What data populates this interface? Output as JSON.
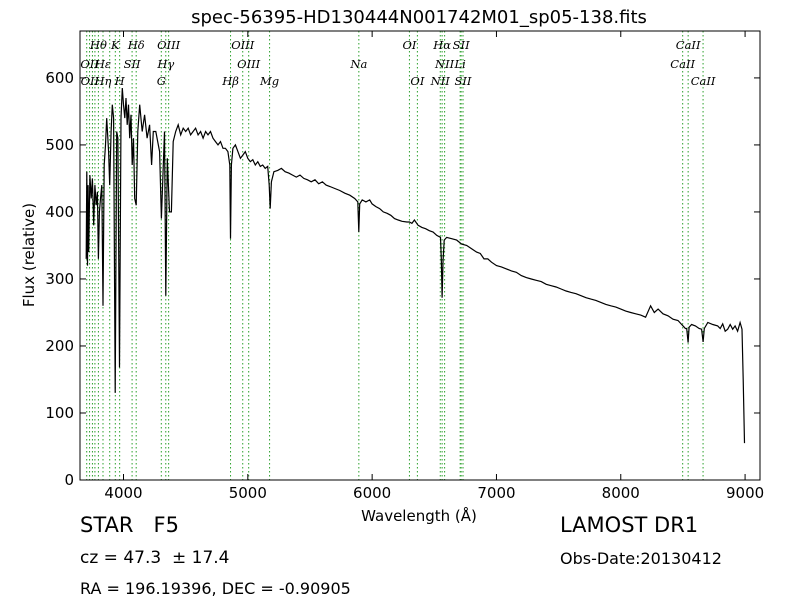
{
  "chart_data": {
    "type": "line",
    "title": "spec-56395-HD130444N001742M01_sp05-138.fits",
    "xlabel": "Wavelength (Å)",
    "ylabel": "Flux (relative)",
    "xlim": [
      3650,
      9120
    ],
    "ylim": [
      0,
      670
    ],
    "xticks": [
      4000,
      5000,
      6000,
      7000,
      8000,
      9000
    ],
    "yticks": [
      0,
      100,
      200,
      300,
      400,
      500,
      600
    ],
    "grid": false,
    "colors": {
      "spectrum": "#000000",
      "line_markers": "#2ca02c"
    },
    "spectrum": [
      [
        3700,
        330
      ],
      [
        3705,
        460
      ],
      [
        3710,
        320
      ],
      [
        3715,
        440
      ],
      [
        3720,
        340
      ],
      [
        3730,
        455
      ],
      [
        3740,
        420
      ],
      [
        3750,
        450
      ],
      [
        3760,
        380
      ],
      [
        3770,
        440
      ],
      [
        3780,
        410
      ],
      [
        3790,
        430
      ],
      [
        3798,
        330
      ],
      [
        3806,
        400
      ],
      [
        3815,
        420
      ],
      [
        3825,
        440
      ],
      [
        3835,
        260
      ],
      [
        3845,
        470
      ],
      [
        3855,
        500
      ],
      [
        3865,
        540
      ],
      [
        3880,
        490
      ],
      [
        3889,
        440
      ],
      [
        3900,
        520
      ],
      [
        3910,
        560
      ],
      [
        3920,
        540
      ],
      [
        3933,
        130
      ],
      [
        3945,
        520
      ],
      [
        3955,
        510
      ],
      [
        3968,
        168
      ],
      [
        3980,
        540
      ],
      [
        3990,
        585
      ],
      [
        4000,
        560
      ],
      [
        4010,
        540
      ],
      [
        4020,
        570
      ],
      [
        4030,
        530
      ],
      [
        4040,
        560
      ],
      [
        4050,
        510
      ],
      [
        4060,
        545
      ],
      [
        4070,
        470
      ],
      [
        4080,
        510
      ],
      [
        4090,
        420
      ],
      [
        4102,
        410
      ],
      [
        4115,
        520
      ],
      [
        4130,
        560
      ],
      [
        4150,
        520
      ],
      [
        4170,
        545
      ],
      [
        4190,
        510
      ],
      [
        4210,
        530
      ],
      [
        4226,
        470
      ],
      [
        4240,
        520
      ],
      [
        4260,
        520
      ],
      [
        4275,
        505
      ],
      [
        4290,
        490
      ],
      [
        4305,
        390
      ],
      [
        4320,
        470
      ],
      [
        4330,
        520
      ],
      [
        4340,
        275
      ],
      [
        4352,
        480
      ],
      [
        4370,
        400
      ],
      [
        4385,
        400
      ],
      [
        4400,
        505
      ],
      [
        4420,
        520
      ],
      [
        4440,
        530
      ],
      [
        4460,
        515
      ],
      [
        4480,
        525
      ],
      [
        4500,
        520
      ],
      [
        4520,
        525
      ],
      [
        4540,
        515
      ],
      [
        4560,
        520
      ],
      [
        4580,
        525
      ],
      [
        4600,
        515
      ],
      [
        4620,
        520
      ],
      [
        4640,
        510
      ],
      [
        4660,
        520
      ],
      [
        4680,
        515
      ],
      [
        4700,
        520
      ],
      [
        4720,
        510
      ],
      [
        4740,
        505
      ],
      [
        4760,
        500
      ],
      [
        4780,
        505
      ],
      [
        4800,
        495
      ],
      [
        4820,
        495
      ],
      [
        4840,
        490
      ],
      [
        4855,
        470
      ],
      [
        4861,
        360
      ],
      [
        4868,
        470
      ],
      [
        4880,
        495
      ],
      [
        4900,
        500
      ],
      [
        4920,
        490
      ],
      [
        4940,
        480
      ],
      [
        4960,
        485
      ],
      [
        4980,
        490
      ],
      [
        5000,
        480
      ],
      [
        5020,
        475
      ],
      [
        5040,
        478
      ],
      [
        5060,
        470
      ],
      [
        5080,
        475
      ],
      [
        5100,
        468
      ],
      [
        5120,
        470
      ],
      [
        5140,
        465
      ],
      [
        5160,
        468
      ],
      [
        5172,
        440
      ],
      [
        5180,
        405
      ],
      [
        5190,
        445
      ],
      [
        5210,
        460
      ],
      [
        5240,
        462
      ],
      [
        5270,
        465
      ],
      [
        5300,
        460
      ],
      [
        5330,
        458
      ],
      [
        5360,
        455
      ],
      [
        5390,
        452
      ],
      [
        5420,
        455
      ],
      [
        5450,
        450
      ],
      [
        5480,
        448
      ],
      [
        5510,
        445
      ],
      [
        5540,
        448
      ],
      [
        5570,
        442
      ],
      [
        5600,
        445
      ],
      [
        5630,
        440
      ],
      [
        5660,
        438
      ],
      [
        5700,
        435
      ],
      [
        5740,
        432
      ],
      [
        5780,
        428
      ],
      [
        5820,
        425
      ],
      [
        5860,
        420
      ],
      [
        5885,
        415
      ],
      [
        5893,
        370
      ],
      [
        5900,
        412
      ],
      [
        5920,
        418
      ],
      [
        5950,
        415
      ],
      [
        5980,
        418
      ],
      [
        6000,
        412
      ],
      [
        6030,
        408
      ],
      [
        6060,
        405
      ],
      [
        6090,
        400
      ],
      [
        6120,
        398
      ],
      [
        6150,
        395
      ],
      [
        6180,
        390
      ],
      [
        6210,
        388
      ],
      [
        6240,
        386
      ],
      [
        6280,
        385
      ],
      [
        6300,
        385
      ],
      [
        6320,
        383
      ],
      [
        6340,
        388
      ],
      [
        6370,
        380
      ],
      [
        6400,
        377
      ],
      [
        6430,
        375
      ],
      [
        6460,
        372
      ],
      [
        6490,
        370
      ],
      [
        6520,
        365
      ],
      [
        6550,
        362
      ],
      [
        6556,
        330
      ],
      [
        6563,
        272
      ],
      [
        6570,
        325
      ],
      [
        6580,
        358
      ],
      [
        6600,
        362
      ],
      [
        6640,
        360
      ],
      [
        6680,
        358
      ],
      [
        6720,
        352
      ],
      [
        6760,
        350
      ],
      [
        6800,
        345
      ],
      [
        6840,
        340
      ],
      [
        6870,
        338
      ],
      [
        6900,
        330
      ],
      [
        6930,
        330
      ],
      [
        6960,
        325
      ],
      [
        7000,
        320
      ],
      [
        7040,
        318
      ],
      [
        7080,
        315
      ],
      [
        7120,
        312
      ],
      [
        7160,
        310
      ],
      [
        7200,
        305
      ],
      [
        7240,
        302
      ],
      [
        7280,
        300
      ],
      [
        7320,
        298
      ],
      [
        7360,
        296
      ],
      [
        7400,
        292
      ],
      [
        7440,
        290
      ],
      [
        7480,
        288
      ],
      [
        7520,
        285
      ],
      [
        7560,
        282
      ],
      [
        7600,
        280
      ],
      [
        7640,
        278
      ],
      [
        7680,
        275
      ],
      [
        7720,
        272
      ],
      [
        7760,
        270
      ],
      [
        7800,
        268
      ],
      [
        7840,
        265
      ],
      [
        7880,
        262
      ],
      [
        7920,
        260
      ],
      [
        7960,
        258
      ],
      [
        8000,
        255
      ],
      [
        8040,
        252
      ],
      [
        8080,
        250
      ],
      [
        8120,
        248
      ],
      [
        8160,
        246
      ],
      [
        8200,
        243
      ],
      [
        8240,
        260
      ],
      [
        8270,
        250
      ],
      [
        8300,
        255
      ],
      [
        8340,
        248
      ],
      [
        8380,
        245
      ],
      [
        8420,
        240
      ],
      [
        8460,
        238
      ],
      [
        8490,
        232
      ],
      [
        8510,
        228
      ],
      [
        8520,
        226
      ],
      [
        8530,
        226
      ],
      [
        8542,
        205
      ],
      [
        8550,
        228
      ],
      [
        8570,
        232
      ],
      [
        8600,
        230
      ],
      [
        8630,
        226
      ],
      [
        8650,
        225
      ],
      [
        8662,
        206
      ],
      [
        8672,
        226
      ],
      [
        8700,
        235
      ],
      [
        8740,
        232
      ],
      [
        8780,
        230
      ],
      [
        8800,
        226
      ],
      [
        8820,
        233
      ],
      [
        8840,
        222
      ],
      [
        8860,
        225
      ],
      [
        8880,
        232
      ],
      [
        8900,
        225
      ],
      [
        8920,
        230
      ],
      [
        8940,
        222
      ],
      [
        8960,
        235
      ],
      [
        8975,
        225
      ],
      [
        8985,
        150
      ],
      [
        8995,
        55
      ]
    ],
    "line_labels": [
      {
        "name": "Hθ",
        "wavelength": 3798,
        "row": 1
      },
      {
        "name": "K",
        "wavelength": 3934,
        "row": 1
      },
      {
        "name": "Hδ",
        "wavelength": 4102,
        "row": 1
      },
      {
        "name": "OIII",
        "wavelength": 4363,
        "row": 1
      },
      {
        "name": "OIII",
        "wavelength": 4959,
        "row": 1
      },
      {
        "name": "OI",
        "wavelength": 6300,
        "row": 1
      },
      {
        "name": "Hα",
        "wavelength": 6563,
        "row": 1
      },
      {
        "name": "SII",
        "wavelength": 6716,
        "row": 1
      },
      {
        "name": "CaII",
        "wavelength": 8542,
        "row": 1
      },
      {
        "name": "OII",
        "wavelength": 3727,
        "row": 2
      },
      {
        "name": "Hε",
        "wavelength": 3835,
        "row": 2
      },
      {
        "name": "SII",
        "wavelength": 4069,
        "row": 2
      },
      {
        "name": "Hγ",
        "wavelength": 4340,
        "row": 2
      },
      {
        "name": "OIII",
        "wavelength": 5007,
        "row": 2
      },
      {
        "name": "NII",
        "wavelength": 6583,
        "row": 2
      },
      {
        "name": "Li",
        "wavelength": 6708,
        "row": 2
      },
      {
        "name": "CaII",
        "wavelength": 8498,
        "row": 2
      },
      {
        "name": "OII",
        "wavelength": 3729,
        "row": 3
      },
      {
        "name": "Hη",
        "wavelength": 3835,
        "row": 3
      },
      {
        "name": "H",
        "wavelength": 3969,
        "row": 3
      },
      {
        "name": "G",
        "wavelength": 4304,
        "row": 3
      },
      {
        "name": "Hβ",
        "wavelength": 4861,
        "row": 3
      },
      {
        "name": "Mg",
        "wavelength": 5175,
        "row": 3
      },
      {
        "name": "Na",
        "wavelength": 5893,
        "row": 2
      },
      {
        "name": "OI",
        "wavelength": 6364,
        "row": 3
      },
      {
        "name": "NII",
        "wavelength": 6548,
        "row": 3
      },
      {
        "name": "SII",
        "wavelength": 6731,
        "row": 3
      },
      {
        "name": "CaII",
        "wavelength": 8662,
        "row": 3
      }
    ],
    "marker_wavelengths": [
      3704,
      3727,
      3750,
      3770,
      3798,
      3835,
      3889,
      3934,
      3969,
      4069,
      4102,
      4304,
      4340,
      4363,
      4861,
      4959,
      5007,
      5175,
      5893,
      6300,
      6364,
      6548,
      6563,
      6583,
      6708,
      6716,
      6731,
      8498,
      8542,
      8662
    ]
  },
  "info": {
    "object_class": "STAR   F5",
    "survey": "LAMOST DR1",
    "redshift": "cz = 47.3  ± 17.4",
    "obs_date": "Obs-Date:20130412",
    "coordinates": "RA = 196.19396, DEC = -0.90905"
  }
}
